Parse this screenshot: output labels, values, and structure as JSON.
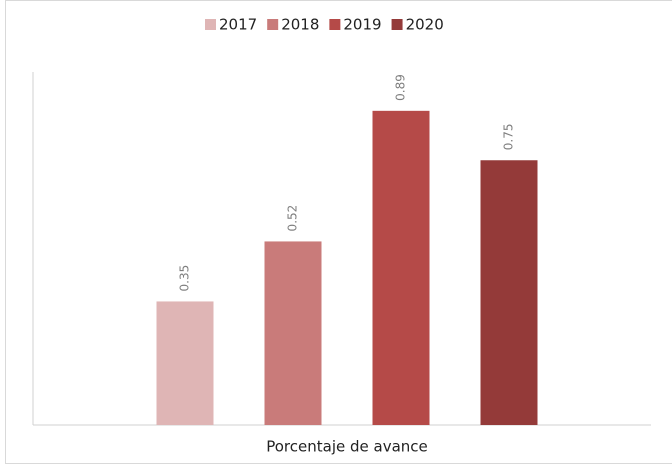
{
  "chart_data": {
    "type": "bar",
    "categories": [
      "Porcentaje de avance"
    ],
    "series": [
      {
        "name": "2017",
        "color": "#dfb5b5",
        "values": [
          0.35
        ]
      },
      {
        "name": "2018",
        "color": "#c97b7a",
        "values": [
          0.52
        ]
      },
      {
        "name": "2019",
        "color": "#b54a48",
        "values": [
          0.89
        ]
      },
      {
        "name": "2020",
        "color": "#943a39",
        "values": [
          0.75
        ]
      }
    ],
    "ylim": [
      0,
      1
    ],
    "grid": false,
    "legend": "top"
  }
}
